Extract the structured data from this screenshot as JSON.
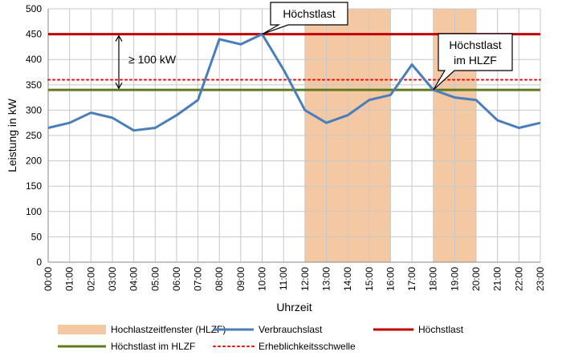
{
  "chart_data": {
    "type": "line",
    "xlabel": "Uhrzeit",
    "ylabel": "Leistung in kW",
    "ylim": [
      0,
      500
    ],
    "y_ticks": [
      0,
      50,
      100,
      150,
      200,
      250,
      300,
      350,
      400,
      450,
      500
    ],
    "categories": [
      "00:00",
      "01:00",
      "02:00",
      "03:00",
      "04:00",
      "05:00",
      "06:00",
      "07:00",
      "08:00",
      "09:00",
      "10:00",
      "11:00",
      "12:00",
      "13:00",
      "14:00",
      "15:00",
      "16:00",
      "17:00",
      "18:00",
      "19:00",
      "20:00",
      "21:00",
      "22:00",
      "23:00"
    ],
    "grid": true,
    "legend_position": "bottom",
    "series": [
      {
        "name": "Verbrauchslast",
        "color": "#4a7ebb",
        "values": [
          265,
          275,
          295,
          285,
          260,
          265,
          290,
          320,
          440,
          430,
          450,
          380,
          300,
          275,
          290,
          320,
          330,
          390,
          340,
          325,
          320,
          280,
          265,
          275
        ]
      }
    ],
    "reference_lines": [
      {
        "name": "Höchstlast",
        "value": 450,
        "color": "#c00000",
        "style": "solid"
      },
      {
        "name": "Höchstlast im HLZF",
        "value": 340,
        "color": "#5f7a1e",
        "style": "solid"
      },
      {
        "name": "Erheblichkeitsschwelle",
        "value": 360,
        "color": "#ff0000",
        "style": "dotted"
      }
    ],
    "shaded_windows": {
      "name": "Hochlastzeitfenster (HLZF)",
      "color": "#f5c8a4",
      "ranges": [
        [
          "12:00",
          "16:00"
        ],
        [
          "18:00",
          "20:00"
        ]
      ]
    },
    "annotations": {
      "peak_callout": "Höchstlast",
      "hlzf_peak_callout_line1": "Höchstlast",
      "hlzf_peak_callout_line2": "im HLZF",
      "difference": "≥ 100 kW"
    }
  }
}
